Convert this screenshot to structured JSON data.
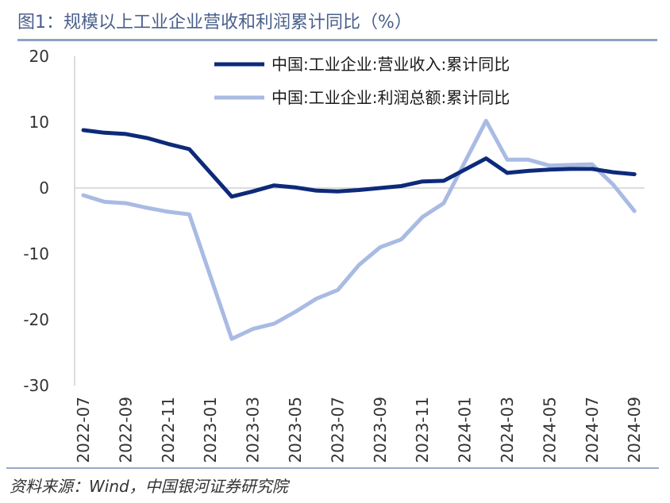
{
  "header": {
    "title": "图1：规模以上工业企业营收和利润累计同比（%）"
  },
  "footer": {
    "source": "资料来源：Wind，中国银河证券研究院"
  },
  "chart_data": {
    "type": "line",
    "title": "图1：规模以上工业企业营收和利润累计同比（%）",
    "xlabel": "",
    "ylabel": "",
    "ylim": [
      -30,
      20
    ],
    "yticks": [
      -30,
      -20,
      -10,
      0,
      10,
      20
    ],
    "x": [
      "2022-07",
      "2022-08",
      "2022-09",
      "2022-10",
      "2022-11",
      "2022-12",
      "2023-02",
      "2023-03",
      "2023-04",
      "2023-05",
      "2023-06",
      "2023-07",
      "2023-08",
      "2023-09",
      "2023-10",
      "2023-11",
      "2023-12",
      "2024-02",
      "2024-03",
      "2024-04",
      "2024-05",
      "2024-06",
      "2024-07",
      "2024-08",
      "2024-09"
    ],
    "xticks": [
      "2022-07",
      "2022-09",
      "2022-11",
      "2023-01",
      "2023-03",
      "2023-05",
      "2023-07",
      "2023-09",
      "2023-11",
      "2024-01",
      "2024-03",
      "2024-05",
      "2024-07",
      "2024-09"
    ],
    "legend_position": "top-right",
    "series": [
      {
        "name": "中国:工业企业:营业收入:累计同比",
        "color": "#0d2a7a",
        "values": [
          8.8,
          8.4,
          8.2,
          7.6,
          6.7,
          5.9,
          -1.3,
          -0.5,
          0.4,
          0.1,
          -0.4,
          -0.5,
          -0.3,
          0.0,
          0.3,
          1.0,
          1.1,
          4.5,
          2.3,
          2.6,
          2.8,
          2.9,
          2.9,
          2.4,
          2.1
        ]
      },
      {
        "name": "中国:工业企业:利润总额:累计同比",
        "color": "#a9bbe3",
        "values": [
          -1.1,
          -2.1,
          -2.3,
          -3.0,
          -3.6,
          -4.0,
          -22.9,
          -21.4,
          -20.6,
          -18.8,
          -16.8,
          -15.5,
          -11.7,
          -9.0,
          -7.8,
          -4.4,
          -2.3,
          10.2,
          4.3,
          4.3,
          3.4,
          3.5,
          3.6,
          0.5,
          -3.5
        ]
      }
    ]
  }
}
